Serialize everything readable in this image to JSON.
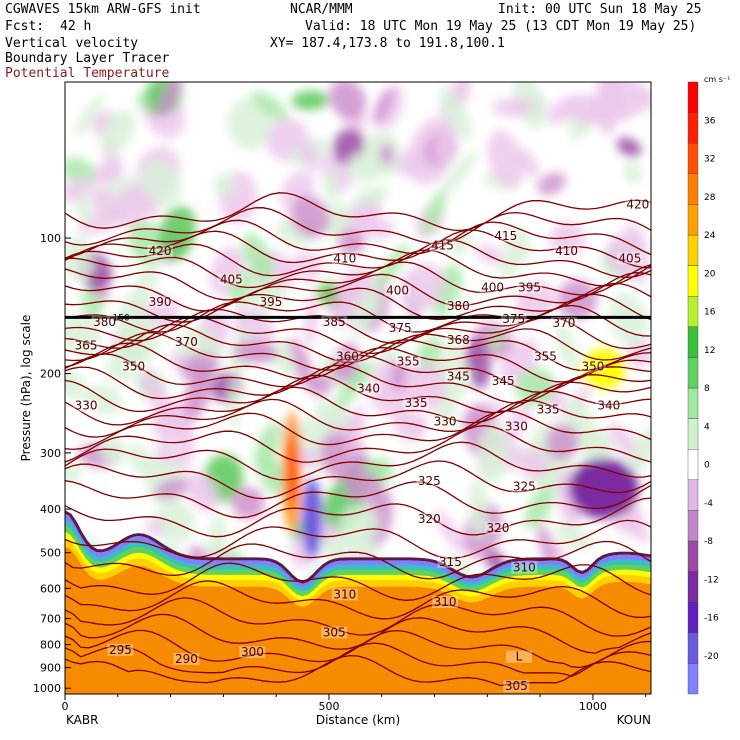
{
  "header": {
    "model": "CGWAVES 15km ARW-GFS init",
    "center": "NCAR/MMM",
    "init": "Init: 00 UTC Sun 18 May 25",
    "fcst_label": "Fcst:",
    "fcst_value": "42 h",
    "valid": "Valid: 18 UTC Mon 19 May 25 (13 CDT Mon 19 May 25)",
    "xy": "XY= 187.4,173.8 to 191.8,100.1",
    "field1": "Vertical velocity",
    "field2": "Boundary Layer Tracer",
    "field3": "Potential Temperature"
  },
  "colors": {
    "theta": "#800000",
    "terrain": "#f68a00",
    "tracer": "#5a1a4a"
  },
  "chart_data": {
    "type": "heatmap",
    "xlabel": "Distance (km)",
    "ylabel": "Pressure (hPa), log scale",
    "xlim": [
      0,
      1110
    ],
    "ylim": [
      1030,
      45
    ],
    "x_ticks": [
      0,
      500,
      1000
    ],
    "x_tick_labels": [
      "0",
      "500",
      "1000"
    ],
    "y_ticks": [
      100,
      200,
      300,
      400,
      500,
      600,
      700,
      800,
      900,
      1000
    ],
    "y_tick_labels": [
      "100",
      "200",
      "300",
      "400",
      "500",
      "600",
      "700",
      "800",
      "900",
      "1000"
    ],
    "left_endpoint": "KABR",
    "right_endpoint": "KOUN",
    "tropopause_label": "150",
    "colorbar": {
      "unit": "cm s⁻¹",
      "levels": [
        -20,
        -16,
        -12,
        -8,
        -4,
        0,
        4,
        8,
        12,
        16,
        20,
        24,
        28,
        32,
        36
      ],
      "labels": [
        "-20",
        "-16",
        "-12",
        "-8",
        "-4",
        "0",
        "4",
        "8",
        "12",
        "16",
        "20",
        "24",
        "28",
        "32",
        "36"
      ],
      "colors": [
        "#8080ff",
        "#6a5ae0",
        "#6020c0",
        "#7b2aa0",
        "#9a4aa6",
        "#c088c8",
        "#e0b8e4",
        "#ffffff",
        "#d0f0d0",
        "#a0e8a0",
        "#60d060",
        "#38c038",
        "#b8f030",
        "#ffff00",
        "#ffd000",
        "#ffa000",
        "#ff8000",
        "#ff5000",
        "#ff2000",
        "#ff0000"
      ]
    },
    "theta_labels": [
      {
        "text": "420",
        "x": 180,
        "p": 108
      },
      {
        "text": "405",
        "x": 315,
        "p": 125
      },
      {
        "text": "395",
        "x": 390,
        "p": 140
      },
      {
        "text": "410",
        "x": 530,
        "p": 112
      },
      {
        "text": "415",
        "x": 715,
        "p": 105
      },
      {
        "text": "415",
        "x": 835,
        "p": 100
      },
      {
        "text": "410",
        "x": 950,
        "p": 108
      },
      {
        "text": "405",
        "x": 1070,
        "p": 112
      },
      {
        "text": "420",
        "x": 1085,
        "p": 85
      },
      {
        "text": "390",
        "x": 180,
        "p": 140
      },
      {
        "text": "400",
        "x": 630,
        "p": 132
      },
      {
        "text": "400",
        "x": 810,
        "p": 130
      },
      {
        "text": "395",
        "x": 880,
        "p": 130
      },
      {
        "text": "380",
        "x": 745,
        "p": 143
      },
      {
        "text": "385",
        "x": 510,
        "p": 155
      },
      {
        "text": "380",
        "x": 75,
        "p": 155
      },
      {
        "text": "375",
        "x": 635,
        "p": 160
      },
      {
        "text": "375",
        "x": 850,
        "p": 153
      },
      {
        "text": "370",
        "x": 945,
        "p": 156
      },
      {
        "text": "365",
        "x": 40,
        "p": 175
      },
      {
        "text": "370",
        "x": 230,
        "p": 172
      },
      {
        "text": "368",
        "x": 745,
        "p": 170
      },
      {
        "text": "360",
        "x": 535,
        "p": 185
      },
      {
        "text": "355",
        "x": 650,
        "p": 190
      },
      {
        "text": "355",
        "x": 910,
        "p": 185
      },
      {
        "text": "350",
        "x": 1000,
        "p": 195
      },
      {
        "text": "350",
        "x": 130,
        "p": 195
      },
      {
        "text": "345",
        "x": 745,
        "p": 205
      },
      {
        "text": "345",
        "x": 830,
        "p": 210
      },
      {
        "text": "340",
        "x": 575,
        "p": 218
      },
      {
        "text": "340",
        "x": 1030,
        "p": 238
      },
      {
        "text": "335",
        "x": 665,
        "p": 235
      },
      {
        "text": "335",
        "x": 915,
        "p": 243
      },
      {
        "text": "330",
        "x": 40,
        "p": 238
      },
      {
        "text": "330",
        "x": 720,
        "p": 258
      },
      {
        "text": "330",
        "x": 855,
        "p": 265
      },
      {
        "text": "325",
        "x": 690,
        "p": 350
      },
      {
        "text": "325",
        "x": 870,
        "p": 360
      },
      {
        "text": "320",
        "x": 690,
        "p": 425
      },
      {
        "text": "320",
        "x": 820,
        "p": 445
      },
      {
        "text": "315",
        "x": 730,
        "p": 530
      },
      {
        "text": "310",
        "x": 870,
        "p": 545
      },
      {
        "text": "310",
        "x": 530,
        "p": 625
      },
      {
        "text": "310",
        "x": 720,
        "p": 650
      },
      {
        "text": "305",
        "x": 510,
        "p": 760
      },
      {
        "text": "300",
        "x": 355,
        "p": 840
      },
      {
        "text": "295",
        "x": 105,
        "p": 830
      },
      {
        "text": "290",
        "x": 230,
        "p": 870
      },
      {
        "text": "305",
        "x": 855,
        "p": 1000
      },
      {
        "text": "L",
        "x": 860,
        "p": 860
      }
    ]
  }
}
